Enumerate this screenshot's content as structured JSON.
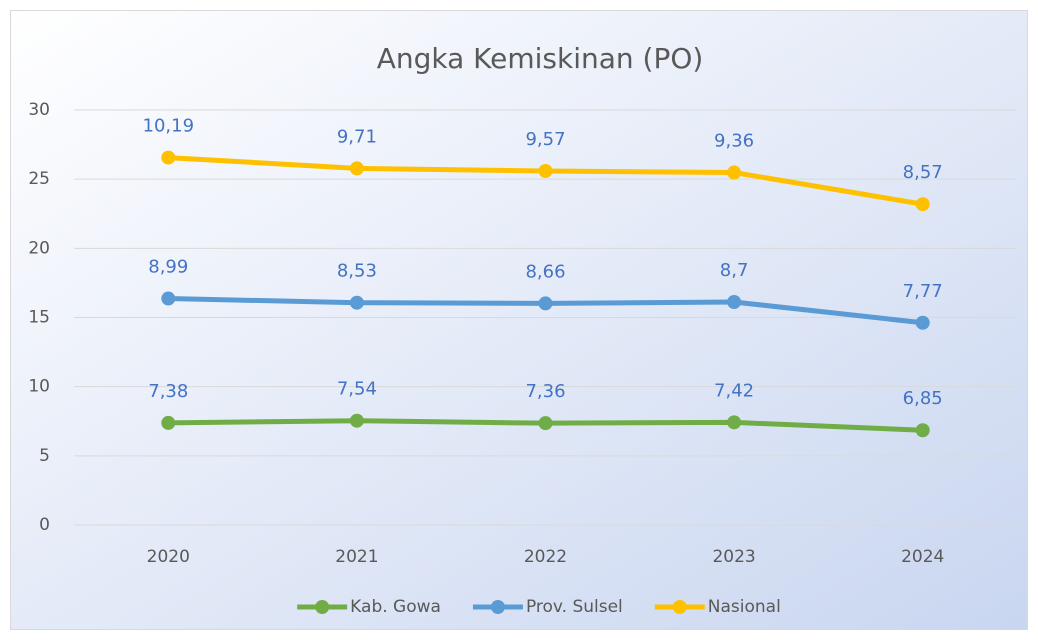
{
  "chart_data": {
    "type": "line",
    "stacked": true,
    "title": "Angka Kemiskinan (PO)",
    "categories": [
      "2020",
      "2021",
      "2022",
      "2023",
      "2024"
    ],
    "series": [
      {
        "name": "Kab. Gowa",
        "color": "#70ad47",
        "values": [
          7.38,
          7.54,
          7.36,
          7.42,
          6.85
        ],
        "value_labels": [
          "7,38",
          "7,54",
          "7,36",
          "7,42",
          "6,85"
        ]
      },
      {
        "name": "Prov. Sulsel",
        "color": "#5b9bd5",
        "values": [
          8.99,
          8.53,
          8.66,
          8.7,
          7.77
        ],
        "value_labels": [
          "8,99",
          "8,53",
          "8,66",
          "8,7",
          "7,77"
        ]
      },
      {
        "name": "Nasional",
        "color": "#ffc000",
        "values": [
          10.19,
          9.71,
          9.57,
          9.36,
          8.57
        ],
        "value_labels": [
          "10,19",
          "9,71",
          "9,57",
          "9,36",
          "8,57"
        ]
      }
    ],
    "ylim": [
      0,
      30
    ],
    "yticks": [
      0,
      5,
      10,
      15,
      20,
      25,
      30
    ],
    "grid": true,
    "legend": "bottom",
    "label_color": "#4472c4"
  }
}
